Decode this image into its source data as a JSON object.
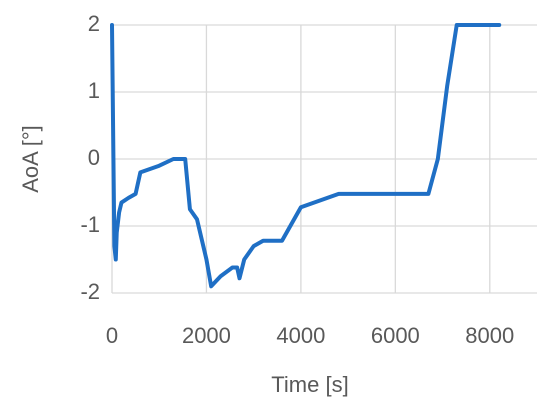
{
  "chart_data": {
    "type": "line",
    "xlabel": "Time [s]",
    "ylabel": "AoA [°]",
    "x": [
      0,
      50,
      80,
      100,
      150,
      200,
      350,
      500,
      600,
      1000,
      1300,
      1550,
      1650,
      1800,
      2000,
      2100,
      2300,
      2550,
      2650,
      2700,
      2800,
      3000,
      3200,
      3600,
      4000,
      4800,
      6700,
      6900,
      7100,
      7300,
      8200
    ],
    "series": [
      {
        "color": "#1f6fc5",
        "values": [
          2,
          -1.3,
          -1.5,
          -1.1,
          -0.8,
          -0.65,
          -0.58,
          -0.52,
          -0.2,
          -0.1,
          0,
          0,
          -0.75,
          -0.9,
          -1.5,
          -1.9,
          -1.75,
          -1.62,
          -1.62,
          -1.78,
          -1.5,
          -1.3,
          -1.22,
          -1.22,
          -0.72,
          -0.52,
          -0.52,
          0,
          1.1,
          2,
          2
        ]
      }
    ],
    "xlim": [
      0,
      9000
    ],
    "xticks": [
      0,
      2000,
      4000,
      6000,
      8000
    ],
    "ylim": [
      -2,
      2
    ],
    "yticks": [
      -2,
      -1,
      0,
      1,
      2
    ],
    "grid": true
  }
}
